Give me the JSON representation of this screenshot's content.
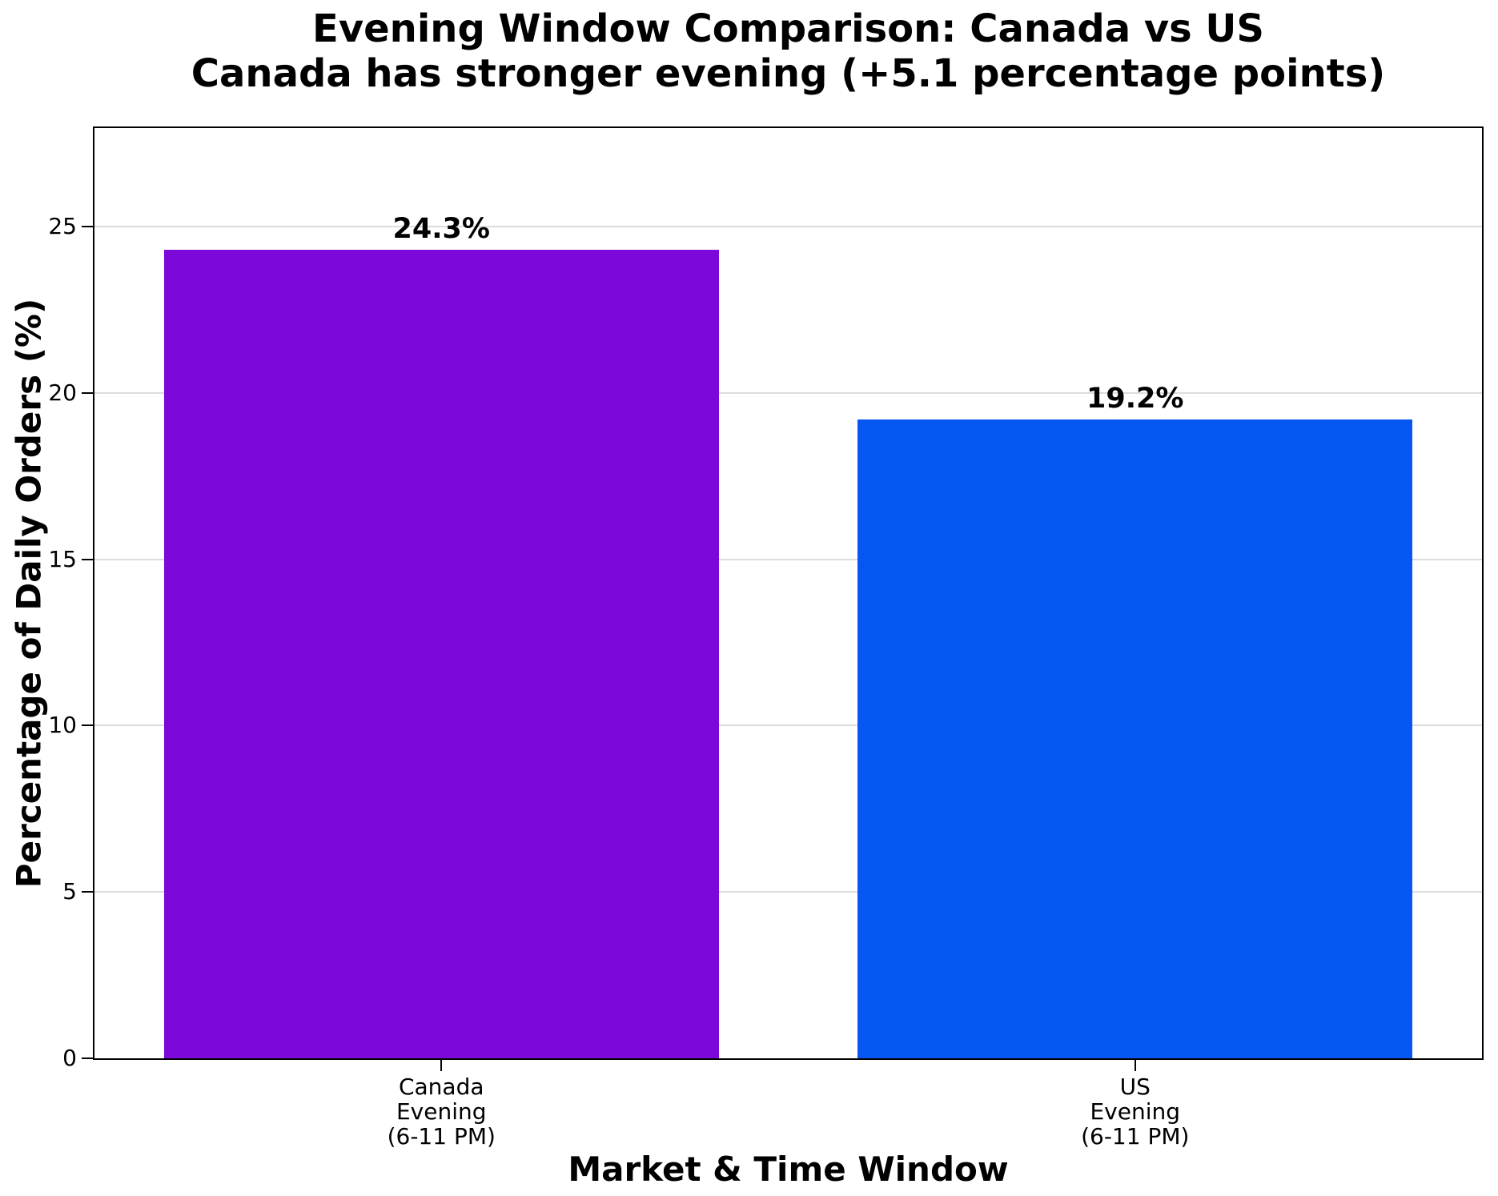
{
  "chart_data": {
    "type": "bar",
    "title": "Evening Window Comparison: Canada vs US",
    "subtitle": "Canada has stronger evening (+5.1 percentage points)",
    "categories": [
      "Canada\nEvening\n(6-11 PM)",
      "US\nEvening\n(6-11 PM)"
    ],
    "values": [
      24.3,
      19.2
    ],
    "bar_labels": [
      "24.3%",
      "19.2%"
    ],
    "bar_names": [
      "canada-evening",
      "us-evening"
    ],
    "bar_colors": [
      "#7D08DA",
      "#0656F2"
    ],
    "xlabel": "Market & Time Window",
    "ylabel": "Percentage of Daily Orders (%)",
    "ylim": [
      0,
      27.96
    ],
    "yticks": [
      0,
      5,
      10,
      15,
      20,
      25
    ],
    "grid": "horizontal",
    "grid_color": "#dcdcdc",
    "axis_color": "#000000",
    "background_color": "#ffffff",
    "legend_position": "none",
    "bar_width_fraction": 0.8
  }
}
